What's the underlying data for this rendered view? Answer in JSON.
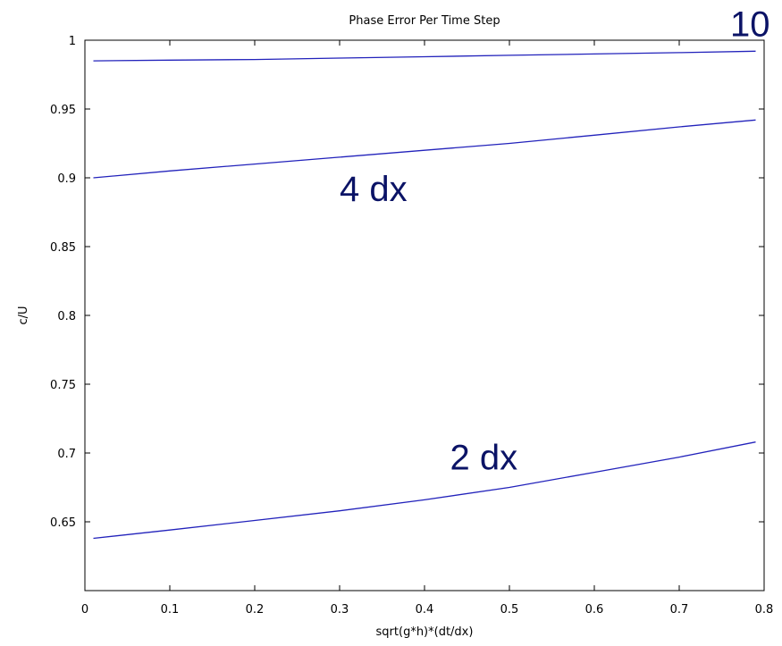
{
  "chart_data": {
    "type": "line",
    "title": "Phase Error Per Time Step",
    "xlabel": "sqrt(g*h)*(dt/dx)",
    "ylabel": "c/U",
    "xlim": [
      0,
      0.8
    ],
    "ylim": [
      0.6,
      1.0
    ],
    "xticks": [
      0,
      0.1,
      0.2,
      0.3,
      0.4,
      0.5,
      0.6,
      0.7,
      0.8
    ],
    "xtick_labels": [
      "0",
      "0.1",
      "0.2",
      "0.3",
      "0.4",
      "0.5",
      "0.6",
      "0.7",
      "0.8"
    ],
    "yticks": [
      0.65,
      0.7,
      0.75,
      0.8,
      0.85,
      0.9,
      0.95,
      1.0
    ],
    "ytick_labels": [
      "0.65",
      "0.7",
      "0.75",
      "0.8",
      "0.85",
      "0.9",
      "0.95",
      "1"
    ],
    "grid": false,
    "line_color": "#2222bb",
    "annotation_color": "#0b1366",
    "series": [
      {
        "x": [
          0.01,
          0.1,
          0.2,
          0.3,
          0.4,
          0.5,
          0.6,
          0.7,
          0.79
        ],
        "values": [
          0.985,
          0.9855,
          0.986,
          0.987,
          0.988,
          0.989,
          0.99,
          0.991,
          0.992
        ]
      },
      {
        "x": [
          0.01,
          0.1,
          0.2,
          0.3,
          0.4,
          0.5,
          0.6,
          0.7,
          0.79
        ],
        "values": [
          0.9,
          0.905,
          0.91,
          0.915,
          0.92,
          0.925,
          0.931,
          0.937,
          0.942
        ]
      },
      {
        "x": [
          0.01,
          0.1,
          0.2,
          0.3,
          0.4,
          0.5,
          0.6,
          0.7,
          0.79
        ],
        "values": [
          0.638,
          0.644,
          0.651,
          0.658,
          0.666,
          0.675,
          0.686,
          0.697,
          0.708
        ]
      }
    ],
    "annotations": [
      {
        "text": "10",
        "x": 0.76,
        "y": 1.003
      },
      {
        "text": "4 dx",
        "x": 0.3,
        "y": 0.883
      },
      {
        "text": "2 dx",
        "x": 0.43,
        "y": 0.688
      }
    ]
  }
}
